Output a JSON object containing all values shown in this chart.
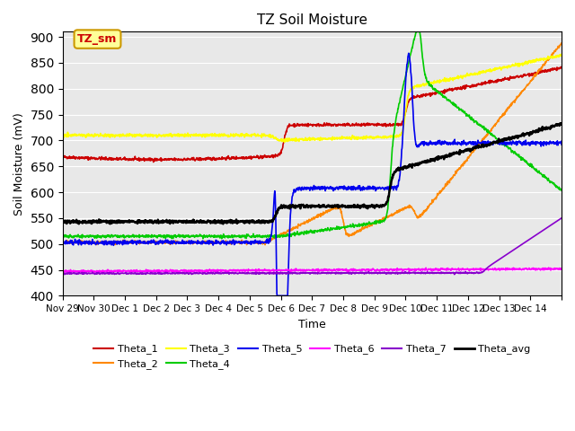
{
  "title": "TZ Soil Moisture",
  "xlabel": "Time",
  "ylabel": "Soil Moisture (mV)",
  "ylim": [
    400,
    910
  ],
  "yticks": [
    400,
    450,
    500,
    550,
    600,
    650,
    700,
    750,
    800,
    850,
    900
  ],
  "x_tick_positions": [
    0,
    1,
    2,
    3,
    4,
    5,
    6,
    7,
    8,
    9,
    10,
    11,
    12,
    13,
    14,
    15,
    16
  ],
  "x_labels": [
    "Nov 29",
    "Nov 30",
    "Dec 1",
    "Dec 2",
    "Dec 3",
    "Dec 4",
    "Dec 5",
    "Dec 6",
    "Dec 7",
    "Dec 8",
    "Dec 9",
    "Dec 10",
    "Dec 11",
    "Dec 12",
    "Dec 13",
    "Dec 14",
    ""
  ],
  "annotation_label": "TZ_sm",
  "annotation_box_color": "#ffff99",
  "annotation_box_edge": "#cc9900",
  "annotation_text_color": "#cc0000",
  "bg_color": "#e8e8e8",
  "series_colors": {
    "Theta_1": "#cc0000",
    "Theta_2": "#ff8800",
    "Theta_3": "#ffff00",
    "Theta_4": "#00cc00",
    "Theta_5": "#0000ee",
    "Theta_6": "#ff00ff",
    "Theta_7": "#8800cc",
    "Theta_avg": "#000000"
  },
  "legend_ncol": 6
}
